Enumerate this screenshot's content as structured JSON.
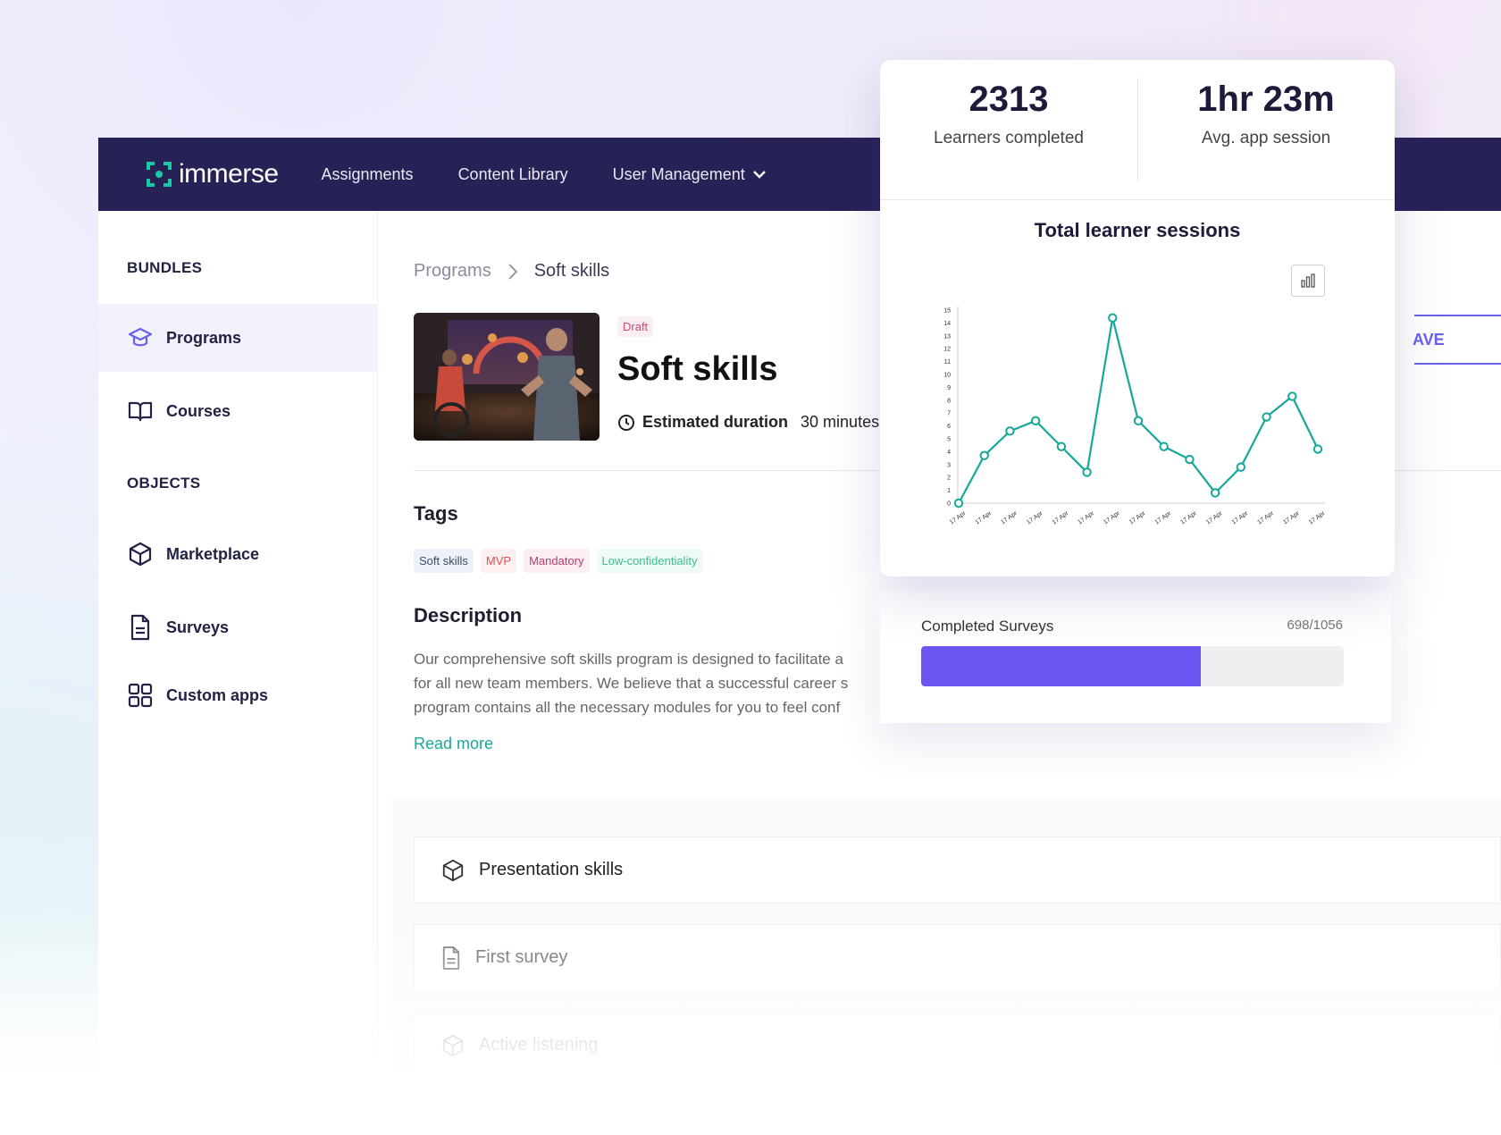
{
  "app": {
    "logo_text": "immerse",
    "nav": [
      "Assignments",
      "Content Library",
      "User Management"
    ]
  },
  "sidebar": {
    "section_bundles": "BUNDLES",
    "section_objects": "OBJECTS",
    "items": [
      {
        "label": "Programs",
        "icon": "graduation-cap-icon"
      },
      {
        "label": "Courses",
        "icon": "book-open-icon"
      },
      {
        "label": "Marketplace",
        "icon": "cube-icon"
      },
      {
        "label": "Surveys",
        "icon": "document-icon"
      },
      {
        "label": "Custom apps",
        "icon": "grid-icon"
      }
    ]
  },
  "breadcrumb": {
    "root": "Programs",
    "current": "Soft skills"
  },
  "program": {
    "status": "Draft",
    "title": "Soft skills",
    "duration_label": "Estimated duration",
    "duration_value": "30 minutes",
    "save_label": "AVE",
    "tags_heading": "Tags",
    "tags": [
      {
        "label": "Soft skills",
        "bg": "#eef2f8",
        "color": "#3d4a66"
      },
      {
        "label": "MVP",
        "bg": "#fdf0f0",
        "color": "#e05050"
      },
      {
        "label": "Mandatory",
        "bg": "#fbeff4",
        "color": "#c0396f"
      },
      {
        "label": "Low-confidentiality",
        "bg": "#eefaf6",
        "color": "#3cc08e"
      }
    ],
    "description_heading": "Description",
    "description_lines": [
      "Our comprehensive soft skills program is designed to facilitate a",
      "for all new team members. We believe that a successful career s",
      "program contains all the necessary modules for you to feel conf"
    ],
    "read_more": "Read more"
  },
  "modules": [
    {
      "label": "Presentation skills",
      "icon": "cube-icon"
    },
    {
      "label": "First survey",
      "icon": "document-icon"
    },
    {
      "label": "Active listening",
      "icon": "cube-icon"
    }
  ],
  "stats": {
    "learners_value": "2313",
    "learners_label": "Learners completed",
    "session_value": "1hr 23m",
    "session_label": "Avg. app session"
  },
  "chart_data": {
    "type": "line",
    "title": "Total learner sessions",
    "x": [
      "17 Apr",
      "17 Apr",
      "17 Apr",
      "17 Apr",
      "17 Apr",
      "17 Apr",
      "17 Apr",
      "17 Apr",
      "17 Apr",
      "17 Apr",
      "17 Apr",
      "17 Apr",
      "17 Apr",
      "17 Apr",
      "17 Apr"
    ],
    "values": [
      0,
      3.7,
      5.6,
      6.4,
      4.4,
      2.4,
      14.4,
      6.4,
      4.4,
      3.4,
      0.8,
      2.8,
      6.7,
      8.3,
      4.2
    ],
    "ylim": [
      0,
      15
    ],
    "yticks": [
      0,
      1,
      2,
      3,
      4,
      5,
      6,
      7,
      8,
      9,
      10,
      11,
      12,
      13,
      14,
      15
    ],
    "color": "#14a89a"
  },
  "surveys": {
    "label": "Completed Surveys",
    "count": "698/1056",
    "completed": 698,
    "total": 1056,
    "color": "#6a55f0"
  }
}
